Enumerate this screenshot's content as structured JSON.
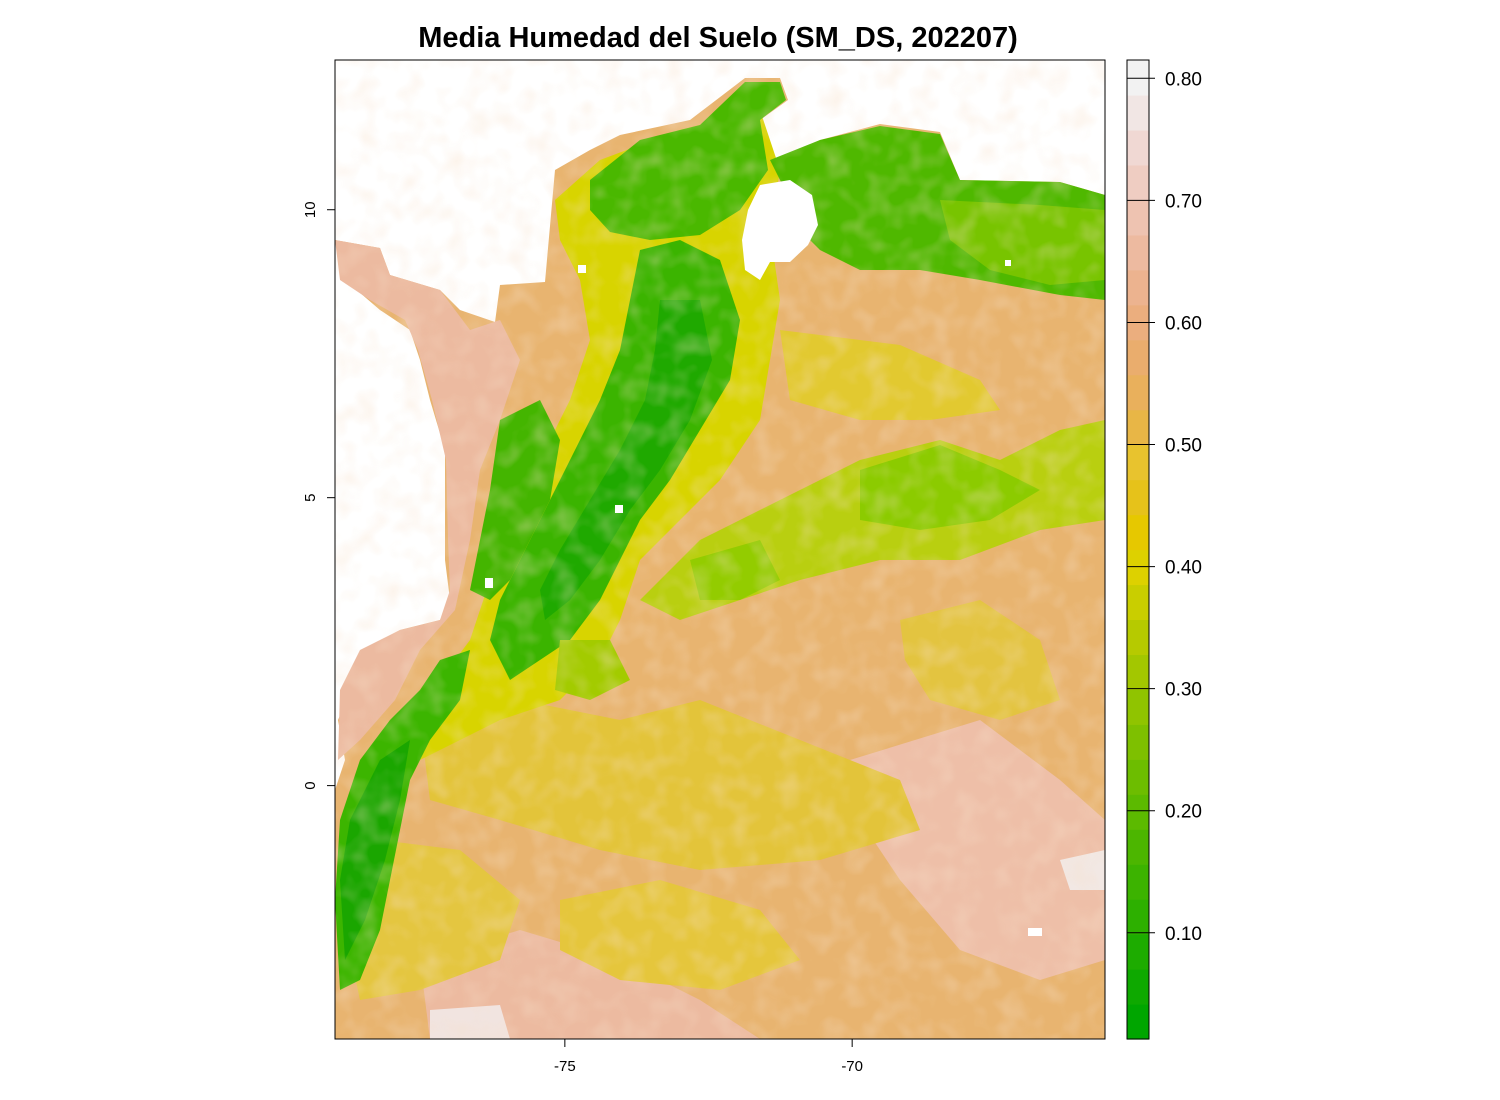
{
  "title": "Media Humedad del Suelo (SM_DS, 202207)",
  "colors": {
    "green_dark": "#00a600",
    "green_mid": "#3fbd00",
    "green_light": "#8bd000",
    "yellow": "#e6e600",
    "gold": "#e8c32e",
    "tan": "#e8b05c",
    "salmon": "#ecb176",
    "pink": "#f0c9c0",
    "near_white": "#f2f2f2"
  },
  "axes": {
    "x_ticks": [
      {
        "value": -75,
        "label": "-75"
      },
      {
        "value": -70,
        "label": "-70"
      }
    ],
    "y_ticks": [
      {
        "value": 0,
        "label": "0"
      },
      {
        "value": 5,
        "label": "5"
      },
      {
        "value": 10,
        "label": "10"
      }
    ],
    "xlim": [
      -79.0,
      -65.6
    ],
    "ylim": [
      -4.4,
      12.6
    ]
  },
  "legend": {
    "min": 0.013,
    "max": 0.815,
    "ticks": [
      {
        "value": 0.1,
        "label": "0.10"
      },
      {
        "value": 0.2,
        "label": "0.20"
      },
      {
        "value": 0.3,
        "label": "0.30"
      },
      {
        "value": 0.4,
        "label": "0.40"
      },
      {
        "value": 0.5,
        "label": "0.50"
      },
      {
        "value": 0.6,
        "label": "0.60"
      },
      {
        "value": 0.7,
        "label": "0.70"
      },
      {
        "value": 0.8,
        "label": "0.80"
      }
    ],
    "colors": [
      "#00a600",
      "#0ea900",
      "#1dac00",
      "#2db000",
      "#3cb300",
      "#4cb600",
      "#5cba00",
      "#6dbd00",
      "#7ec000",
      "#90c400",
      "#a3c700",
      "#b6ca00",
      "#c9ce00",
      "#ddd100",
      "#e6c800",
      "#e6c21a",
      "#e8c32e",
      "#e8b646",
      "#e9b05c",
      "#eaad6d",
      "#ebae7e",
      "#ecb38f",
      "#edbaa0",
      "#eec3b1",
      "#efcdc2",
      "#f0d8d3",
      "#f1e6e4",
      "#f2f2f2"
    ]
  }
}
